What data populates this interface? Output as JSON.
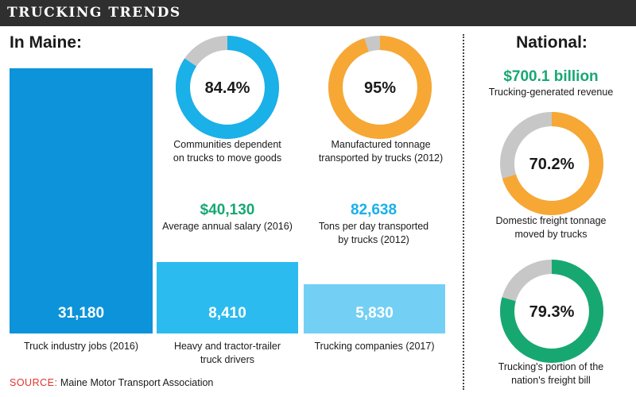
{
  "title": "TRUCKING TRENDS",
  "maine": {
    "heading": "In Maine:",
    "donuts": [
      {
        "value": 84.4,
        "display": "84.4%",
        "color": "#1ab0e8",
        "label": [
          "Communities dependent",
          "on trucks to move goods"
        ]
      },
      {
        "value": 95,
        "display": "95%",
        "color": "#f7a733",
        "label": [
          "Manufactured tonnage",
          "transported by trucks (2012)"
        ]
      }
    ],
    "stats": [
      {
        "value": "$40,130",
        "color": "#17a872",
        "label": [
          "Average annual salary (2016)"
        ]
      },
      {
        "value": "82,638",
        "color": "#1ab0e8",
        "label": [
          "Tons per day transported",
          "by trucks (2012)"
        ]
      }
    ]
  },
  "national": {
    "heading": "National:",
    "revenue": {
      "value": "$700.1 billion",
      "color": "#17a872",
      "label": [
        "Trucking-generated revenue"
      ]
    },
    "donuts": [
      {
        "value": 70.2,
        "display": "70.2%",
        "color": "#f7a733",
        "label": [
          "Domestic freight tonnage",
          "moved by trucks"
        ]
      },
      {
        "value": 79.3,
        "display": "79.3%",
        "color": "#17a872",
        "label": [
          "Trucking's portion of the",
          "nation's freight bill"
        ]
      }
    ]
  },
  "chart_data": [
    {
      "type": "bar",
      "categories": [
        "Truck industry jobs (2016)",
        "Heavy and tractor-trailer truck drivers",
        "Trucking companies (2017)"
      ],
      "values": [
        31180,
        8410,
        5830
      ],
      "value_labels": [
        "31,180",
        "8,410",
        "5,830"
      ],
      "colors": [
        "#0d93d9",
        "#2bbbef",
        "#73d0f4"
      ],
      "label_lines": [
        [
          "Truck industry jobs (2016)"
        ],
        [
          "Heavy and tractor-trailer",
          "truck drivers"
        ],
        [
          "Trucking companies (2017)"
        ]
      ],
      "ylim": [
        0,
        31180
      ],
      "grid": false
    },
    {
      "type": "pie",
      "series": [
        {
          "name": "Communities dependent on trucks to move goods",
          "values": [
            84.4,
            15.6
          ]
        },
        {
          "name": "Manufactured tonnage transported by trucks (2012)",
          "values": [
            95,
            5
          ]
        },
        {
          "name": "Domestic freight tonnage moved by trucks",
          "values": [
            70.2,
            29.8
          ]
        },
        {
          "name": "Trucking's portion of the nation's freight bill",
          "values": [
            79.3,
            20.7
          ]
        }
      ],
      "remainder_color": "#c7c7c7"
    }
  ],
  "source": {
    "prefix": "SOURCE:",
    "text": " Maine Motor Transport Association",
    "prefix_color": "#e0342c"
  }
}
